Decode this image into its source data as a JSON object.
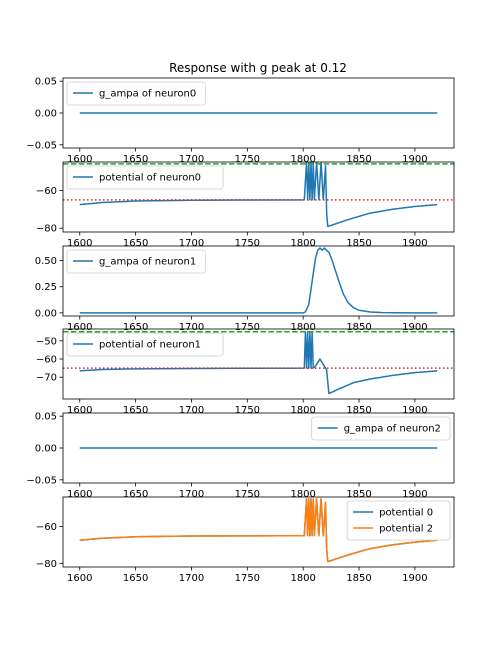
{
  "title": "Response with g peak at 0.12",
  "colors": {
    "blue": "#1f77b4",
    "orange": "#ff7f0e",
    "green": "#2ca02c",
    "red": "#d62728",
    "axes": "#000000"
  },
  "chart_data": [
    {
      "type": "line",
      "title": "Response with g peak at 0.12",
      "xlim": [
        1585,
        1935
      ],
      "ylim": [
        -0.055,
        0.055
      ],
      "xticks": [
        1600,
        1650,
        1700,
        1750,
        1800,
        1850,
        1900
      ],
      "yticks": [
        0.05,
        0.0,
        -0.05
      ],
      "ytick_labels": [
        "0.05",
        "0.00",
        "−0.05"
      ],
      "legend": "upper left",
      "series": [
        {
          "name": "g_ampa of neuron0",
          "color": "blue",
          "x": [
            1600,
            1920
          ],
          "y": [
            0.0,
            0.0
          ]
        }
      ]
    },
    {
      "type": "line",
      "xlim": [
        1585,
        1935
      ],
      "ylim": [
        -82,
        -45
      ],
      "xticks": [
        1600,
        1650,
        1700,
        1750,
        1800,
        1850,
        1900
      ],
      "yticks": [
        -60,
        -80
      ],
      "ytick_labels": [
        "−60",
        "−80"
      ],
      "legend": "upper left",
      "series": [
        {
          "name": "potential of neuron0",
          "color": "blue",
          "kind": "spiking",
          "x": [
            1600,
            1620,
            1650,
            1700,
            1750,
            1801,
            1803,
            1804,
            1805,
            1806,
            1807,
            1808,
            1809,
            1810,
            1812,
            1814,
            1816,
            1818,
            1820,
            1821,
            1822,
            1825,
            1840,
            1860,
            1880,
            1900,
            1920
          ],
          "y": [
            -67.5,
            -66.4,
            -65.6,
            -65.2,
            -65.1,
            -65.0,
            -45,
            -65,
            -45,
            -65,
            -45,
            -65,
            -45,
            -65,
            -45,
            -65,
            -45,
            -65,
            -47,
            -72,
            -79,
            -78.5,
            -75.5,
            -72,
            -70,
            -68.5,
            -67.5
          ]
        }
      ],
      "hlines": [
        {
          "y": -46,
          "color": "green",
          "style": "dashed"
        },
        {
          "y": -65,
          "color": "red",
          "style": "dotted"
        }
      ]
    },
    {
      "type": "line",
      "xlim": [
        1585,
        1935
      ],
      "ylim": [
        -0.03,
        0.64
      ],
      "xticks": [
        1600,
        1650,
        1700,
        1750,
        1800,
        1850,
        1900
      ],
      "yticks": [
        0.5,
        0.25,
        0.0
      ],
      "ytick_labels": [
        "0.50",
        "0.25",
        "0.00"
      ],
      "legend": "upper left",
      "series": [
        {
          "name": "g_ampa of neuron1",
          "color": "blue",
          "x": [
            1600,
            1800,
            1802,
            1805,
            1808,
            1811,
            1813,
            1815,
            1817,
            1819,
            1821,
            1823,
            1826,
            1829,
            1832,
            1836,
            1840,
            1845,
            1850,
            1860,
            1870,
            1880,
            1900,
            1920
          ],
          "y": [
            0.0,
            0.0,
            0.01,
            0.08,
            0.3,
            0.52,
            0.6,
            0.62,
            0.6,
            0.62,
            0.6,
            0.58,
            0.5,
            0.4,
            0.3,
            0.18,
            0.1,
            0.05,
            0.025,
            0.008,
            0.003,
            0.001,
            0.0,
            0.0
          ]
        }
      ]
    },
    {
      "type": "line",
      "xlim": [
        1585,
        1935
      ],
      "ylim": [
        -82,
        -43.5
      ],
      "xticks": [
        1600,
        1650,
        1700,
        1750,
        1800,
        1850,
        1900
      ],
      "yticks": [
        -50,
        -60,
        -70
      ],
      "ytick_labels": [
        "−50",
        "−60",
        "−70"
      ],
      "legend": "upper left",
      "series": [
        {
          "name": "potential of neuron1",
          "color": "blue",
          "kind": "spiking",
          "x": [
            1600,
            1620,
            1650,
            1700,
            1750,
            1801,
            1802,
            1803,
            1804,
            1805,
            1806,
            1807,
            1808,
            1809,
            1810,
            1812,
            1815,
            1818,
            1821,
            1823,
            1830,
            1845,
            1860,
            1880,
            1900,
            1920
          ],
          "y": [
            -66.5,
            -65.8,
            -65.4,
            -65.2,
            -65.1,
            -65.0,
            -45,
            -65,
            -45,
            -65,
            -45,
            -65,
            -45,
            -65,
            -64.5,
            -63,
            -60,
            -63,
            -66,
            -79,
            -77,
            -73,
            -71,
            -69,
            -67.5,
            -66.5
          ]
        }
      ],
      "hlines": [
        {
          "y": -45,
          "color": "green",
          "style": "dashed"
        },
        {
          "y": -65,
          "color": "red",
          "style": "dotted"
        }
      ]
    },
    {
      "type": "line",
      "xlim": [
        1585,
        1935
      ],
      "ylim": [
        -0.055,
        0.055
      ],
      "xticks": [
        1600,
        1650,
        1700,
        1750,
        1800,
        1850,
        1900
      ],
      "yticks": [
        0.05,
        0.0,
        -0.05
      ],
      "ytick_labels": [
        "0.05",
        "0.00",
        "−0.05"
      ],
      "legend": "upper right",
      "series": [
        {
          "name": "g_ampa of neuron2",
          "color": "blue",
          "x": [
            1600,
            1920
          ],
          "y": [
            0.0,
            0.0
          ]
        }
      ]
    },
    {
      "type": "line",
      "xlim": [
        1585,
        1935
      ],
      "ylim": [
        -82,
        -44
      ],
      "xticks": [
        1600,
        1650,
        1700,
        1750,
        1800,
        1850,
        1900
      ],
      "xtick_labels": [
        "1600",
        "1650",
        "1700",
        "1750",
        "1800",
        "1850",
        "1900"
      ],
      "yticks": [
        -60,
        -80
      ],
      "ytick_labels": [
        "−60",
        "−80"
      ],
      "legend": "upper right",
      "series": [
        {
          "name": "potential 0",
          "color": "blue",
          "kind": "spiking",
          "x": [
            1600,
            1620,
            1650,
            1700,
            1750,
            1801,
            1803,
            1804,
            1805,
            1806,
            1807,
            1808,
            1809,
            1810,
            1812,
            1814,
            1816,
            1818,
            1820,
            1821,
            1822,
            1825,
            1840,
            1860,
            1880,
            1900,
            1920
          ],
          "y": [
            -67.5,
            -66.4,
            -65.6,
            -65.2,
            -65.1,
            -65.0,
            -45,
            -65,
            -45,
            -65,
            -45,
            -65,
            -45,
            -65,
            -45,
            -65,
            -45,
            -65,
            -47,
            -72,
            -79,
            -78.5,
            -75.5,
            -72,
            -70,
            -68.5,
            -67.5
          ]
        },
        {
          "name": "potential 2",
          "color": "orange",
          "kind": "spiking",
          "x": [
            1600,
            1620,
            1650,
            1700,
            1750,
            1801,
            1803,
            1804,
            1805,
            1806,
            1807,
            1808,
            1809,
            1810,
            1812,
            1814,
            1816,
            1818,
            1820,
            1821,
            1822,
            1825,
            1840,
            1860,
            1880,
            1900,
            1920
          ],
          "y": [
            -67.5,
            -66.4,
            -65.6,
            -65.2,
            -65.1,
            -65.0,
            -45,
            -65,
            -45,
            -65,
            -45,
            -65,
            -45,
            -65,
            -45,
            -65,
            -45,
            -65,
            -47,
            -72,
            -79,
            -78.5,
            -75.5,
            -72,
            -70,
            -68.5,
            -67.5
          ]
        }
      ]
    }
  ]
}
